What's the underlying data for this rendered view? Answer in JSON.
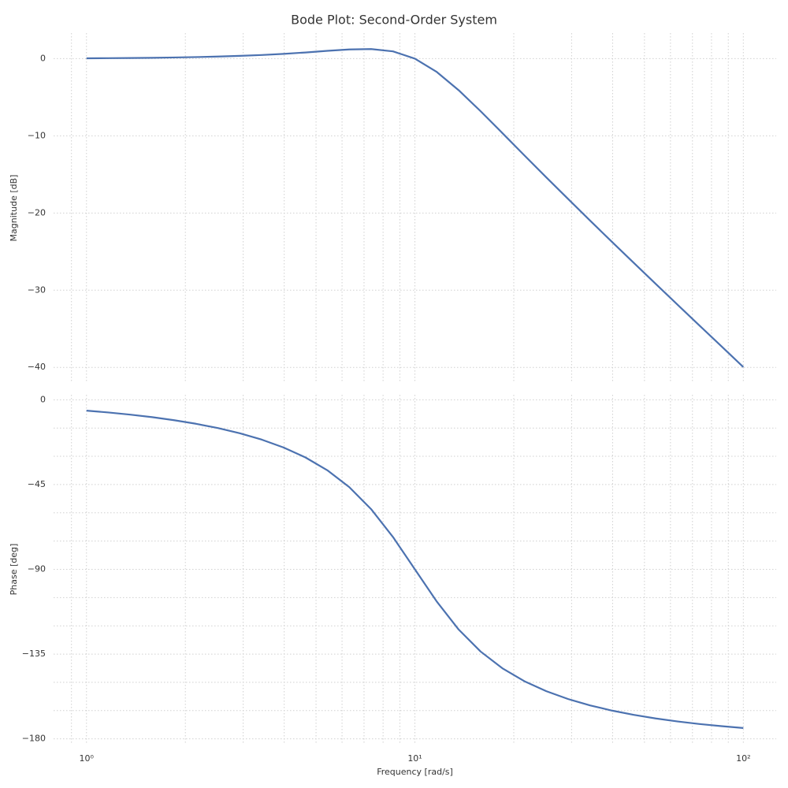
{
  "title": "Bode Plot: Second-Order System",
  "chart_data": [
    {
      "type": "line",
      "ylabel": "Magnitude [dB]",
      "x": [
        1,
        1.166,
        1.359,
        1.585,
        1.848,
        2.154,
        2.512,
        2.929,
        3.415,
        3.981,
        4.642,
        5.412,
        6.31,
        7.356,
        8.577,
        10,
        11.66,
        13.59,
        15.85,
        18.48,
        21.54,
        25.12,
        29.29,
        34.15,
        39.81,
        46.42,
        54.12,
        63.1,
        73.56,
        85.77,
        100
      ],
      "series": [
        {
          "color": "#4c72b0",
          "values": [
            0.04,
            0.06,
            0.08,
            0.11,
            0.15,
            0.2,
            0.27,
            0.36,
            0.47,
            0.62,
            0.8,
            1.01,
            1.19,
            1.24,
            0.94,
            0,
            -1.73,
            -4.09,
            -6.81,
            -9.66,
            -12.53,
            -15.38,
            -18.19,
            -20.98,
            -23.74,
            -26.47,
            -29.19,
            -31.89,
            -34.59,
            -37.27,
            -39.96
          ]
        }
      ],
      "xscale": "log",
      "xlim": [
        0.794,
        125.9
      ],
      "xticks": [
        1,
        10,
        100
      ],
      "show_xticklabels": false,
      "xminorticks": [
        0.9,
        2,
        3,
        4,
        5,
        6,
        7,
        8,
        9,
        20,
        30,
        40,
        50,
        60,
        70,
        80,
        90
      ],
      "ylim": [
        -42.02,
        3.31
      ],
      "yticks": [
        {
          "value": -40,
          "label": "−40"
        },
        {
          "value": -30,
          "label": "−30"
        },
        {
          "value": -20,
          "label": "−20"
        },
        {
          "value": -10,
          "label": "−10"
        },
        0
      ],
      "yminorticks": [],
      "grid": true
    },
    {
      "type": "line",
      "ylabel": "Phase [deg]",
      "xlabel": "Frequency [rad/s]",
      "x": [
        1,
        1.166,
        1.359,
        1.585,
        1.848,
        2.154,
        2.512,
        2.929,
        3.415,
        3.981,
        4.642,
        5.412,
        6.31,
        7.356,
        8.577,
        10,
        11.66,
        13.59,
        15.85,
        18.48,
        21.54,
        25.12,
        29.29,
        34.15,
        39.81,
        46.42,
        54.12,
        63.1,
        73.56,
        85.77,
        100
      ],
      "series": [
        {
          "color": "#4c72b0",
          "values": [
            -5.77,
            -6.74,
            -7.88,
            -9.23,
            -10.83,
            -12.73,
            -15.01,
            -17.76,
            -21.13,
            -25.32,
            -30.61,
            -37.43,
            -46.35,
            -58.05,
            -72.87,
            -90,
            -107.13,
            -121.96,
            -133.64,
            -142.57,
            -149.39,
            -154.68,
            -158.87,
            -162.24,
            -164.99,
            -167.27,
            -169.17,
            -170.77,
            -172.12,
            -173.26,
            -174.23
          ]
        }
      ],
      "xscale": "log",
      "xlim": [
        0.794,
        125.9
      ],
      "xticks": [
        {
          "value": 1,
          "label": "10⁰"
        },
        {
          "value": 10,
          "label": "10¹"
        },
        {
          "value": 100,
          "label": "10²"
        }
      ],
      "show_xticklabels": true,
      "xminorticks": [
        0.9,
        2,
        3,
        4,
        5,
        6,
        7,
        8,
        9,
        20,
        30,
        40,
        50,
        60,
        70,
        80,
        90
      ],
      "ylim": [
        -182.66,
        2.65
      ],
      "yticks": [
        {
          "value": -180,
          "label": "−180"
        },
        {
          "value": -135,
          "label": "−135"
        },
        {
          "value": -90,
          "label": "−90"
        },
        {
          "value": -45,
          "label": "−45"
        },
        0
      ],
      "yminorticks": [
        -165,
        -150,
        -120,
        -105,
        -75,
        -60,
        -30,
        -15
      ],
      "grid": true
    }
  ]
}
